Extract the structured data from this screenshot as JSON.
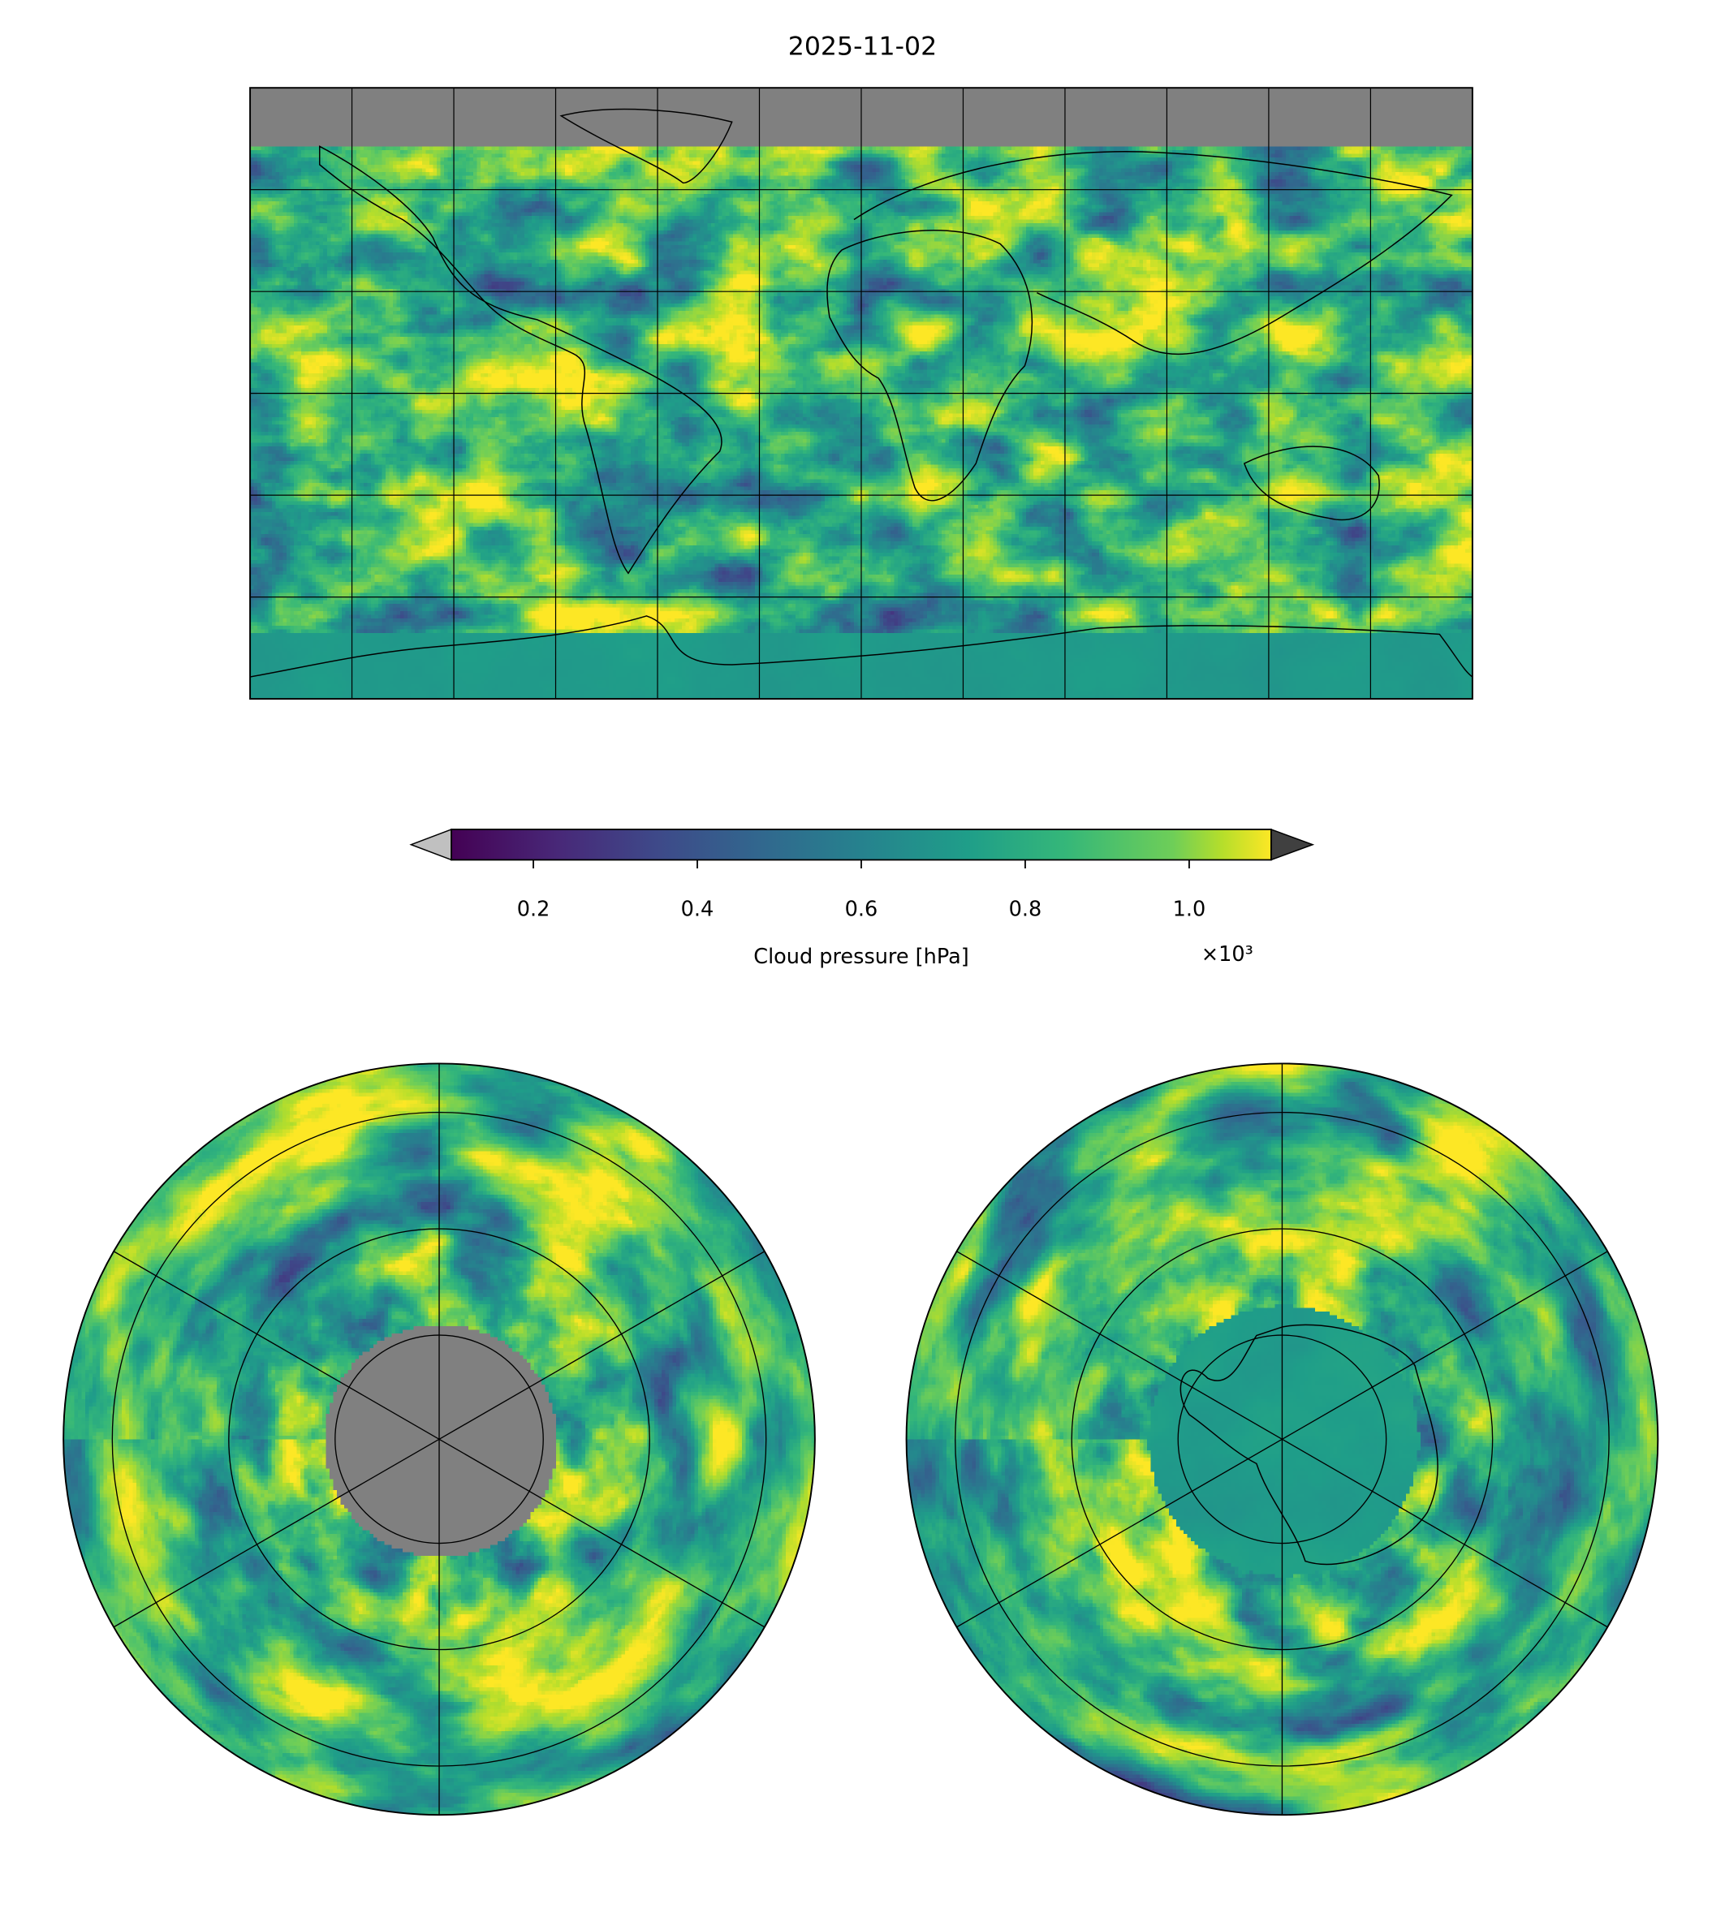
{
  "chart_data": {
    "type": "heatmap",
    "title": "2025-11-02",
    "variable": "Cloud pressure [hPa]",
    "panels": [
      {
        "name": "global",
        "projection": "equirectangular",
        "gridline_spacing_deg": 30
      },
      {
        "name": "north-polar",
        "projection": "north-polar-stereographic",
        "gridline_spacing_deg": 30
      },
      {
        "name": "south-polar",
        "projection": "south-polar-stereographic",
        "gridline_spacing_deg": 30
      }
    ],
    "colorbar": {
      "colormap": "viridis",
      "label": "Cloud pressure [hPa]",
      "offset_text": "×10³",
      "tick_values": [
        0.2,
        0.4,
        0.6,
        0.8,
        1.0
      ],
      "tick_labels": [
        "0.2",
        "0.4",
        "0.6",
        "0.8",
        "1.0"
      ],
      "vmin": 0.1,
      "vmax": 1.1,
      "extend": "both",
      "under_color": "#c0c0c0",
      "over_color": "#404040"
    },
    "missing_color": "#808080"
  }
}
